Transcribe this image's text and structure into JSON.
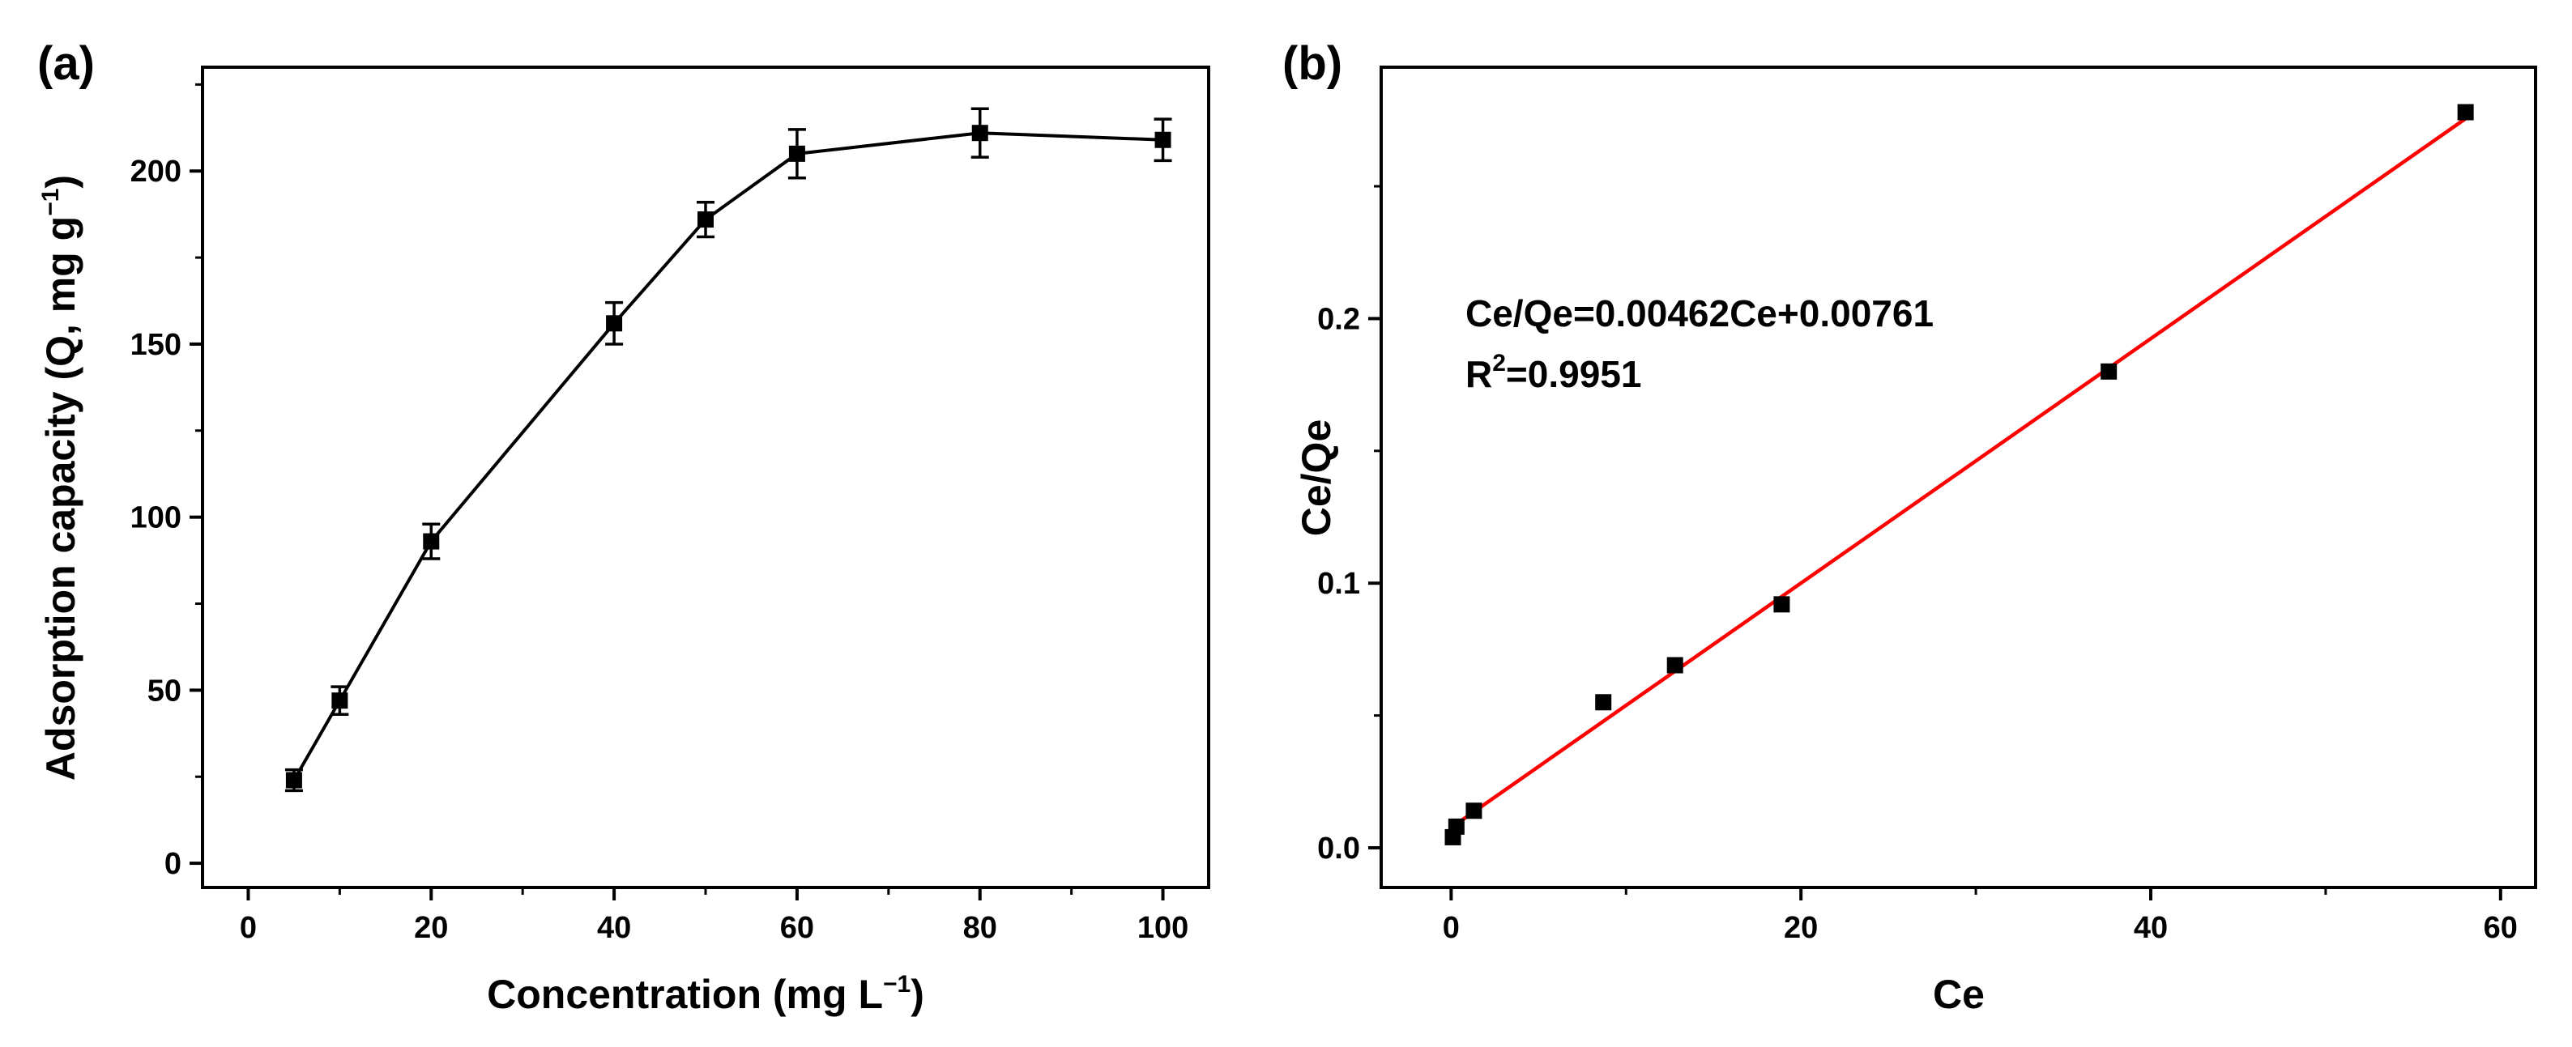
{
  "chart_data": [
    {
      "type": "line",
      "panel_label": "(a)",
      "x": [
        5,
        10,
        20,
        40,
        50,
        60,
        80,
        100
      ],
      "values": [
        24,
        47,
        93,
        156,
        186,
        205,
        211,
        209
      ],
      "errors": [
        3,
        4,
        5,
        6,
        5,
        7,
        7,
        6
      ],
      "xlim": [
        -5,
        105
      ],
      "ylim": [
        -7,
        230
      ],
      "xticks": [
        0,
        20,
        40,
        60,
        80,
        100
      ],
      "xtick_labels": [
        "0",
        "20",
        "40",
        "60",
        "80",
        "100"
      ],
      "yticks": [
        0,
        50,
        100,
        150,
        200
      ],
      "ytick_labels": [
        "0",
        "50",
        "100",
        "150",
        "200"
      ],
      "xlabel_main": "Concentration (mg L",
      "xlabel_sup": "−1",
      "xlabel_end": ")",
      "ylabel_main": "Adsorption capacity (Q, mg g",
      "ylabel_sup": "−1",
      "ylabel_end": ")",
      "marker": "square",
      "line_color": "#000000",
      "marker_color": "#000000"
    },
    {
      "type": "scatter",
      "panel_label": "(b)",
      "x": [
        0.1,
        0.3,
        1.3,
        8.7,
        12.8,
        18.9,
        37.6,
        58.0
      ],
      "values": [
        0.004,
        0.008,
        0.014,
        0.055,
        0.069,
        0.092,
        0.18,
        0.278
      ],
      "fit": {
        "slope": 0.00462,
        "intercept": 0.00761,
        "x_range": [
          0,
          58
        ],
        "color": "#ff0000"
      },
      "xlim": [
        -4,
        62
      ],
      "ylim": [
        -0.015,
        0.295
      ],
      "xticks": [
        0,
        20,
        40,
        60
      ],
      "xtick_labels": [
        "0",
        "20",
        "40",
        "60"
      ],
      "yticks": [
        0,
        0.1,
        0.2
      ],
      "ytick_labels": [
        "0.0",
        "0.1",
        "0.2"
      ],
      "xlabel": "Ce",
      "ylabel": "Ce/Qe",
      "equation_text": "Ce/Qe=0.00462Ce+0.00761",
      "r2_main": "R",
      "r2_sup": "2",
      "r2_value": "=0.9951",
      "marker": "square",
      "marker_color": "#000000"
    }
  ]
}
